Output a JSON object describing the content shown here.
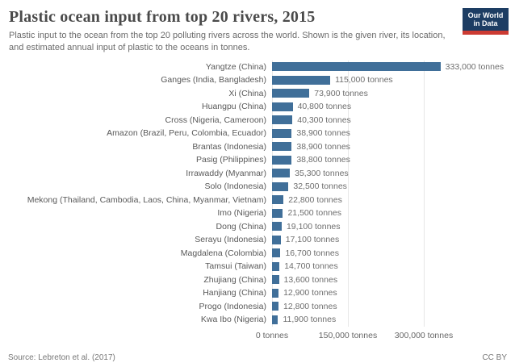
{
  "header": {
    "title": "Plastic ocean input from top 20 rivers, 2015",
    "subtitle_line1": "Plastic input to the ocean from the top 20 polluting rivers across the world. Shown is the given river, its location,",
    "subtitle_line2": "and estimated annual input of plastic to the oceans in tonnes.",
    "logo": {
      "line1": "Our World",
      "line2": "in Data",
      "bg_color": "#1d3d63",
      "accent_color": "#cc3b33"
    }
  },
  "chart_data": {
    "type": "bar",
    "orientation": "horizontal",
    "title": "Plastic ocean input from top 20 rivers, 2015",
    "xlabel": "tonnes",
    "ylabel": "",
    "xlim": [
      0,
      300000
    ],
    "grid": true,
    "bar_color": "#406f99",
    "grid_color": "#e7e7e7",
    "categories": [
      "Yangtze (China)",
      "Ganges (India, Bangladesh)",
      "Xi (China)",
      "Huangpu (China)",
      "Cross (Nigeria, Cameroon)",
      "Amazon (Brazil, Peru, Colombia, Ecuador)",
      "Brantas (Indonesia)",
      "Pasig (Philippines)",
      "Irrawaddy (Myanmar)",
      "Solo (Indonesia)",
      "Mekong (Thailand, Cambodia, Laos, China, Myanmar, Vietnam)",
      "Imo (Nigeria)",
      "Dong (China)",
      "Serayu (Indonesia)",
      "Magdalena (Colombia)",
      "Tamsui (Taiwan)",
      "Zhujiang (China)",
      "Hanjiang (China)",
      "Progo (Indonesia)",
      "Kwa Ibo (Nigeria)"
    ],
    "values": [
      333000,
      115000,
      73900,
      40800,
      40300,
      38900,
      38900,
      38800,
      35300,
      32500,
      22800,
      21500,
      19100,
      17100,
      16700,
      14700,
      13600,
      12900,
      12800,
      11900
    ],
    "value_labels": [
      "333,000 tonnes",
      "115,000 tonnes",
      "73,900 tonnes",
      "40,800 tonnes",
      "40,300 tonnes",
      "38,900 tonnes",
      "38,900 tonnes",
      "38,800 tonnes",
      "35,300 tonnes",
      "32,500 tonnes",
      "22,800 tonnes",
      "21,500 tonnes",
      "19,100 tonnes",
      "17,100 tonnes",
      "16,700 tonnes",
      "14,700 tonnes",
      "13,600 tonnes",
      "12,900 tonnes",
      "12,800 tonnes",
      "11,900 tonnes"
    ],
    "x_ticks": [
      {
        "value": 0,
        "label": "0 tonnes"
      },
      {
        "value": 150000,
        "label": "150,000 tonnes"
      },
      {
        "value": 300000,
        "label": "300,000 tonnes"
      }
    ]
  },
  "footer": {
    "source": "Source: Lebreton et al. (2017)",
    "license": "CC BY"
  }
}
